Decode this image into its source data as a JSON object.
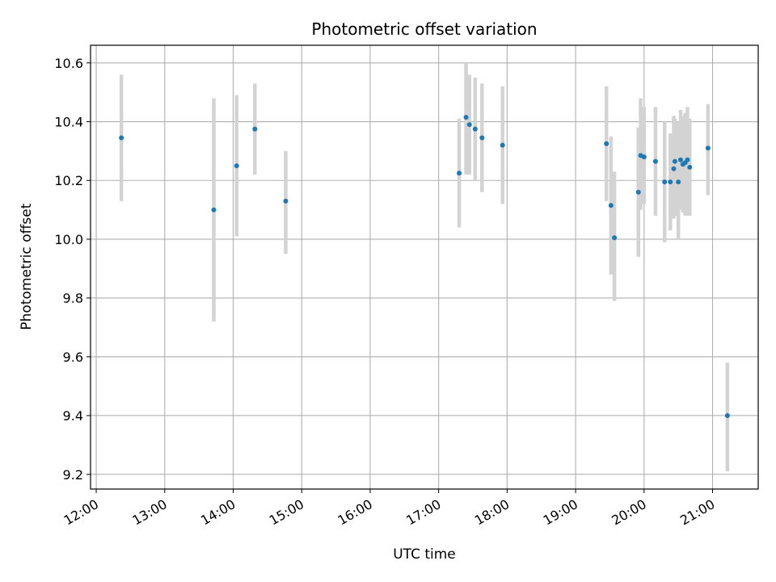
{
  "chart_data": {
    "type": "scatter",
    "title": "Photometric offset variation",
    "xlabel": "UTC time",
    "ylabel": "Photometric offset",
    "x_unit": "hours (UTC)",
    "xlim": [
      "11:55",
      "21:40"
    ],
    "ylim": [
      9.15,
      10.66
    ],
    "x_ticks": [
      "12:00",
      "13:00",
      "14:00",
      "15:00",
      "16:00",
      "17:00",
      "18:00",
      "19:00",
      "20:00",
      "21:00"
    ],
    "y_ticks": [
      "9.2",
      "9.4",
      "9.6",
      "9.8",
      "10.0",
      "10.2",
      "10.4",
      "10.6"
    ],
    "grid": true,
    "colors": {
      "point": "#1f77b4",
      "errorbar": "#d3d3d3",
      "grid": "#b0b0b0"
    },
    "points": [
      {
        "t": "12:22",
        "y": 10.345,
        "lo": 10.13,
        "hi": 10.56
      },
      {
        "t": "13:43",
        "y": 10.1,
        "lo": 9.72,
        "hi": 10.48
      },
      {
        "t": "14:03",
        "y": 10.25,
        "lo": 10.01,
        "hi": 10.49
      },
      {
        "t": "14:19",
        "y": 10.375,
        "lo": 10.22,
        "hi": 10.53
      },
      {
        "t": "14:46",
        "y": 10.13,
        "lo": 9.95,
        "hi": 10.3
      },
      {
        "t": "17:18",
        "y": 10.225,
        "lo": 10.04,
        "hi": 10.41
      },
      {
        "t": "17:24",
        "y": 10.415,
        "lo": 10.22,
        "hi": 10.6
      },
      {
        "t": "17:27",
        "y": 10.39,
        "lo": 10.22,
        "hi": 10.56
      },
      {
        "t": "17:32",
        "y": 10.375,
        "lo": 10.2,
        "hi": 10.55
      },
      {
        "t": "17:38",
        "y": 10.345,
        "lo": 10.16,
        "hi": 10.53
      },
      {
        "t": "17:56",
        "y": 10.32,
        "lo": 10.12,
        "hi": 10.52
      },
      {
        "t": "19:27",
        "y": 10.325,
        "lo": 10.13,
        "hi": 10.52
      },
      {
        "t": "19:31",
        "y": 10.115,
        "lo": 9.88,
        "hi": 10.35
      },
      {
        "t": "19:34",
        "y": 10.005,
        "lo": 9.79,
        "hi": 10.23
      },
      {
        "t": "19:55",
        "y": 10.16,
        "lo": 9.94,
        "hi": 10.38
      },
      {
        "t": "19:57",
        "y": 10.285,
        "lo": 10.1,
        "hi": 10.48
      },
      {
        "t": "20:00",
        "y": 10.28,
        "lo": 10.12,
        "hi": 10.45
      },
      {
        "t": "20:10",
        "y": 10.265,
        "lo": 10.08,
        "hi": 10.45
      },
      {
        "t": "20:18",
        "y": 10.195,
        "lo": 9.99,
        "hi": 10.4
      },
      {
        "t": "20:23",
        "y": 10.195,
        "lo": 10.03,
        "hi": 10.36
      },
      {
        "t": "20:26",
        "y": 10.24,
        "lo": 10.07,
        "hi": 10.42
      },
      {
        "t": "20:27",
        "y": 10.265,
        "lo": 10.08,
        "hi": 10.41
      },
      {
        "t": "20:30",
        "y": 10.195,
        "lo": 10.0,
        "hi": 10.4
      },
      {
        "t": "20:32",
        "y": 10.27,
        "lo": 10.1,
        "hi": 10.44
      },
      {
        "t": "20:34",
        "y": 10.255,
        "lo": 10.09,
        "hi": 10.42
      },
      {
        "t": "20:36",
        "y": 10.26,
        "lo": 10.08,
        "hi": 10.43
      },
      {
        "t": "20:38",
        "y": 10.27,
        "lo": 10.08,
        "hi": 10.45
      },
      {
        "t": "20:40",
        "y": 10.245,
        "lo": 10.08,
        "hi": 10.41
      },
      {
        "t": "20:56",
        "y": 10.31,
        "lo": 10.15,
        "hi": 10.46
      },
      {
        "t": "21:13",
        "y": 9.4,
        "lo": 9.21,
        "hi": 9.58
      }
    ]
  }
}
